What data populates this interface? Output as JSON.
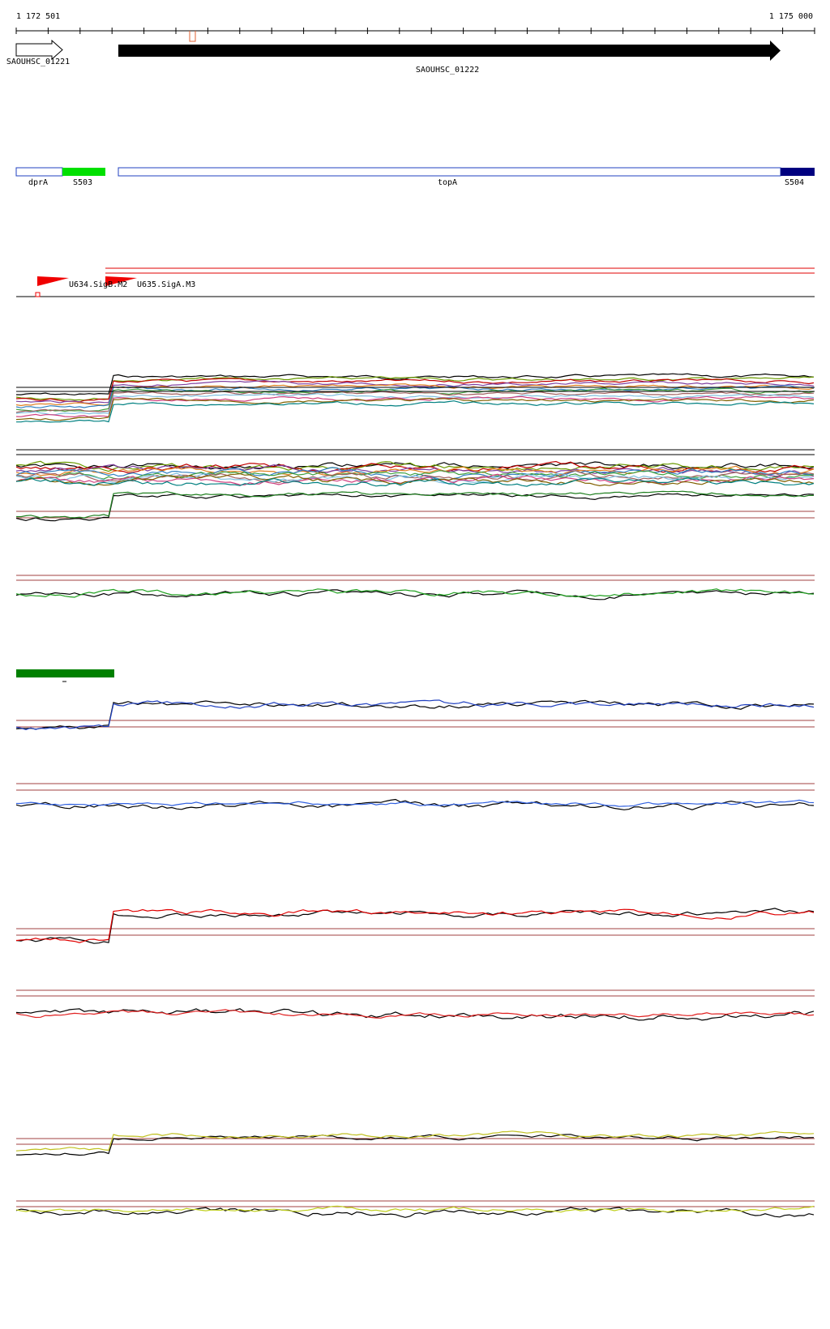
{
  "ruler": {
    "start": "1 172 501",
    "end": "1 175 000"
  },
  "genes": [
    {
      "label": "SAOUHSC_01221"
    },
    {
      "label": "SAOUHSC_01222"
    }
  ],
  "features": [
    {
      "label": "dprA"
    },
    {
      "label": "S503"
    },
    {
      "label": "topA"
    },
    {
      "label": "S504"
    }
  ],
  "promoters": [
    {
      "label": "U634.SigB.M2"
    },
    {
      "label": "U635.SigA.M3"
    }
  ]
}
